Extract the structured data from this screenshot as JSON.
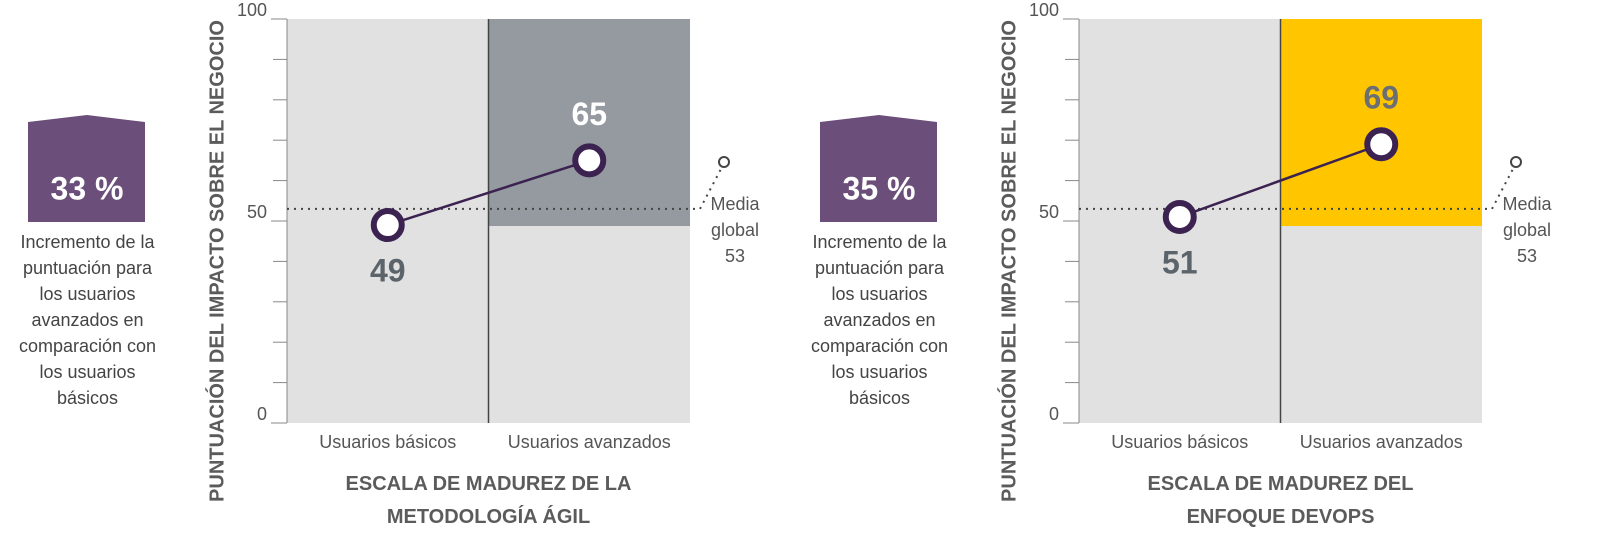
{
  "chart_data": [
    {
      "type": "line",
      "badge": "33 %",
      "description": "Incremento de la puntuación para los usuarios avanzados en comparación con los usuarios básicos",
      "ylabel": "PUNTUACIÓN DEL IMPACTO SOBRE EL NEGOCIO",
      "xlabel": "ESCALA DE MADUREZ DE LA METODOLOGÍA ÁGIL",
      "categories": [
        "Usuarios básicos",
        "Usuarios avanzados"
      ],
      "values": [
        49,
        65
      ],
      "color": "#3b2250",
      "label_colors": [
        "#5b636b",
        "#ffffff"
      ],
      "highlight_color": "#959aa1",
      "badge_color": "#6b4f7a",
      "ylim": [
        0,
        100
      ],
      "yticks": [
        0,
        50,
        100
      ],
      "minor_yticks": [
        10,
        20,
        30,
        40,
        60,
        70,
        80,
        90
      ],
      "reference": {
        "value": 53,
        "label": "Media global"
      }
    },
    {
      "type": "line",
      "badge": "35 %",
      "description": "Incremento de la puntuación para los usuarios avanzados en comparación con los usuarios básicos",
      "ylabel": "PUNTUACIÓN DEL IMPACTO SOBRE EL NEGOCIO",
      "xlabel": "ESCALA DE MADUREZ DEL ENFOQUE DEVOPS",
      "categories": [
        "Usuarios básicos",
        "Usuarios avanzados"
      ],
      "values": [
        51,
        69
      ],
      "color": "#3b2250",
      "label_colors": [
        "#5b636b",
        "#6b6e72"
      ],
      "highlight_color": "#ffc600",
      "badge_color": "#6b4f7a",
      "ylim": [
        0,
        100
      ],
      "yticks": [
        0,
        50,
        100
      ],
      "minor_yticks": [
        10,
        20,
        30,
        40,
        60,
        70,
        80,
        90
      ],
      "reference": {
        "value": 53,
        "label": "Media global"
      }
    }
  ]
}
